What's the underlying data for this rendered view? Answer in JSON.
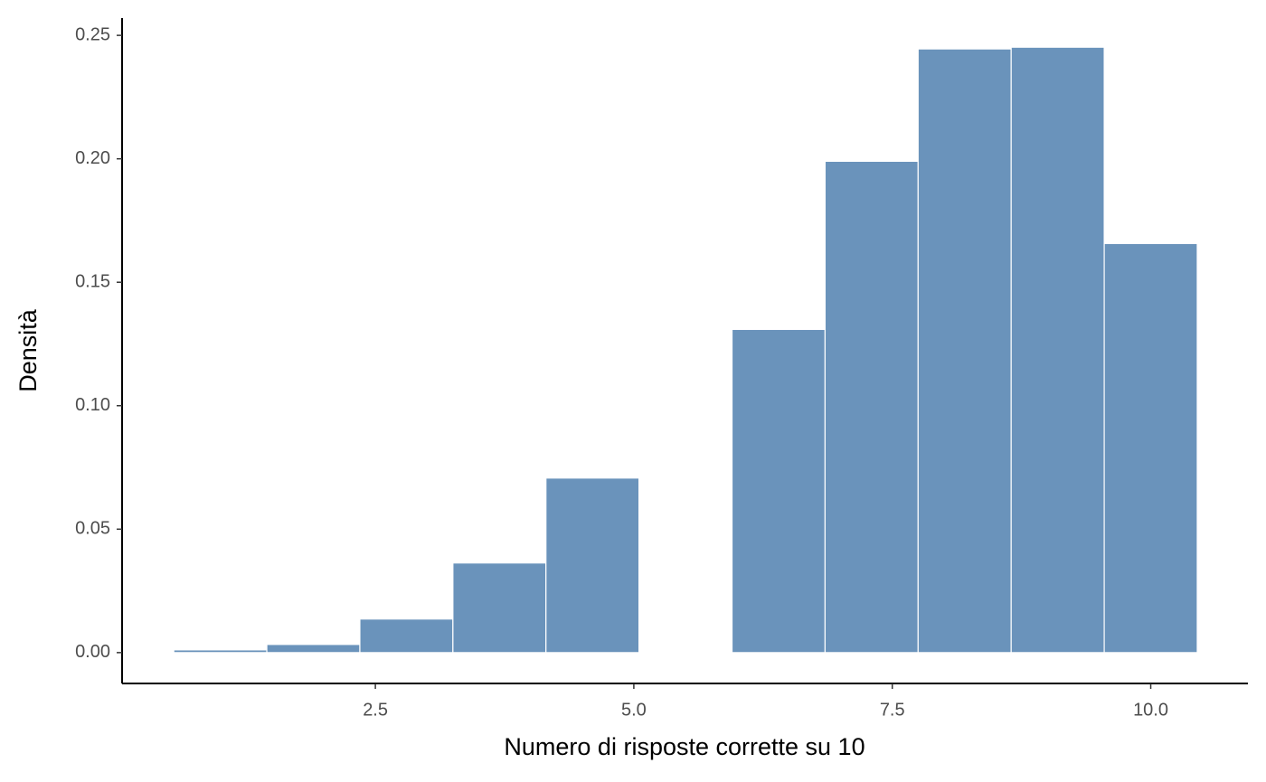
{
  "chart_data": {
    "type": "histogram",
    "xlabel": "Numero di risposte corrette su 10",
    "ylabel": "Densità",
    "bins": [
      0.55,
      1.45,
      2.35,
      3.25,
      4.15,
      5.05,
      5.95,
      6.85,
      7.75,
      8.65,
      9.55,
      10.45
    ],
    "values": [
      0.0011,
      0.0033,
      0.0136,
      0.0363,
      0.0707,
      0,
      0.1309,
      0.199,
      0.2445,
      0.2452,
      0.1657
    ],
    "color": "#6a93bb",
    "xlim": [
      0.05,
      10.94
    ],
    "ylim": [
      -0.0125,
      0.257
    ],
    "xticks": [
      2.5,
      {
        "value": 5,
        "label": "5.0"
      },
      7.5,
      {
        "value": 10,
        "label": "10.0"
      }
    ],
    "yticks": [
      {
        "value": 0,
        "label": "0.00"
      },
      {
        "value": 0.05,
        "label": "0.05"
      },
      {
        "value": 0.1,
        "label": "0.10"
      },
      {
        "value": 0.15,
        "label": "0.15"
      },
      {
        "value": 0.2,
        "label": "0.20"
      },
      {
        "value": 0.25,
        "label": "0.25"
      }
    ],
    "grid": false
  }
}
